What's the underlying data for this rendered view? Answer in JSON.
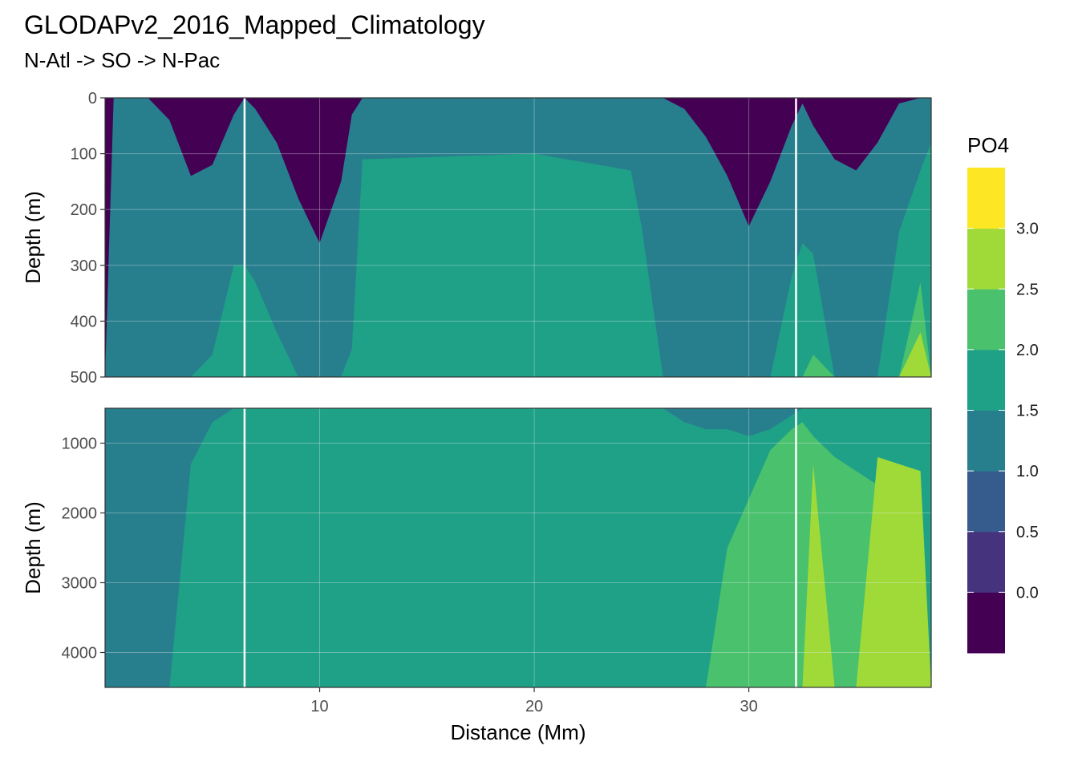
{
  "chart_data": {
    "type": "heatmap",
    "title": "GLODAPv2_2016_Mapped_Climatology",
    "subtitle": "N-Atl -> SO -> N-Pac",
    "xlabel": "Distance (Mm)",
    "ylabel": "Depth (m)",
    "xlim": [
      0,
      38.5
    ],
    "x_ticks": [
      10,
      20,
      30
    ],
    "section_breaks_x": [
      6.5,
      32.2
    ],
    "panels": [
      {
        "name": "upper",
        "ylim": [
          0,
          500
        ],
        "y_ticks": [
          0,
          100,
          200,
          300,
          400,
          500
        ],
        "bands": [
          {
            "level": 0,
            "x": [
              0,
              0.4,
              1.0,
              2.0,
              3.0,
              4.0,
              5.0,
              6.0,
              6.5,
              7.0,
              8.0,
              9.0,
              10.0,
              11.0,
              11.5,
              12.0,
              20.0,
              24.5,
              25.0,
              26.0,
              27.0,
              28.0,
              29.0,
              30.0,
              31.0,
              32.0,
              32.5,
              33.0,
              34.0,
              35.0,
              36.0,
              37.0,
              38.0,
              38.5
            ],
            "top": [
              0,
              0,
              0,
              0,
              0,
              0,
              0,
              0,
              0,
              0,
              0,
              0,
              0,
              0,
              0,
              0,
              0,
              0,
              0,
              0,
              0,
              0,
              0,
              0,
              0,
              0,
              0,
              0,
              0,
              0,
              0,
              0,
              0,
              0
            ]
          },
          {
            "level": 1,
            "x": [
              0,
              0.4,
              1.0,
              2.0,
              3.0,
              4.0,
              5.0,
              6.0,
              6.5,
              7.0,
              8.0,
              9.0,
              10.0,
              11.0,
              11.5,
              12.0,
              20.0,
              24.5,
              25.0,
              26.0,
              27.0,
              28.0,
              29.0,
              30.0,
              31.0,
              32.0,
              32.5,
              33.0,
              34.0,
              35.0,
              36.0,
              37.0,
              38.0,
              38.5
            ],
            "top": [
              500,
              500,
              480,
              420,
              360,
              370,
              420,
              480,
              480,
              500,
              500,
              500,
              500,
              500,
              500,
              500,
              500,
              500,
              500,
              500,
              500,
              500,
              500,
              500,
              480,
              470,
              500,
              500,
              500,
              500,
              500,
              500,
              500,
              500
            ]
          },
          {
            "level": 2,
            "x": [
              0,
              0.4,
              1.0,
              2.0,
              3.0,
              4.0,
              5.0,
              6.0,
              6.5,
              7.0,
              8.0,
              9.0,
              10.0,
              11.0,
              11.5,
              12.0,
              20.0,
              24.5,
              25.0,
              26.0,
              27.0,
              28.0,
              29.0,
              30.0,
              31.0,
              32.0,
              32.5,
              33.0,
              34.0,
              35.0,
              36.0,
              37.0,
              38.0,
              38.5
            ],
            "top": [
              500,
              80,
              40,
              80,
              140,
              220,
              200,
              80,
              40,
              60,
              160,
              280,
              370,
              200,
              60,
              0,
              0,
              0,
              0,
              0,
              80,
              160,
              240,
              320,
              220,
              100,
              60,
              120,
              200,
              230,
              150,
              40,
              20,
              40
            ]
          },
          {
            "level": 3,
            "x": [
              0,
              0.4,
              1.0,
              2.0,
              3.0,
              4.0,
              5.0,
              6.0,
              6.5,
              7.0,
              8.0,
              9.0,
              10.0,
              11.0,
              11.5,
              12.0,
              20.0,
              24.5,
              25.0,
              26.0,
              27.0,
              28.0,
              29.0,
              30.0,
              31.0,
              32.0,
              32.5,
              33.0,
              34.0,
              35.0,
              36.0,
              37.0,
              38.0,
              38.5
            ],
            "top": [
              500,
              0,
              0,
              0,
              40,
              140,
              120,
              30,
              0,
              20,
              80,
              180,
              260,
              150,
              30,
              0,
              0,
              0,
              0,
              0,
              20,
              70,
              140,
              230,
              150,
              50,
              10,
              50,
              110,
              130,
              80,
              10,
              0,
              0
            ]
          },
          {
            "level": 4,
            "x": [
              0,
              0.4,
              1.0,
              2.0,
              3.0,
              4.0,
              5.0,
              6.0,
              6.5,
              7.0,
              8.0,
              9.0,
              10.0,
              11.0,
              11.5,
              12.0,
              20.0,
              24.5,
              25.0,
              26.0,
              27.0,
              28.0,
              29.0,
              30.0,
              31.0,
              32.0,
              32.5,
              33.0,
              34.0,
              35.0,
              36.0,
              37.0,
              38.0,
              38.5
            ],
            "top": [
              500,
              500,
              500,
              500,
              500,
              500,
              460,
              300,
              300,
              330,
              420,
              500,
              500,
              500,
              450,
              110,
              100,
              130,
              230,
              500,
              500,
              500,
              500,
              500,
              500,
              320,
              260,
              280,
              500,
              500,
              500,
              240,
              130,
              80
            ]
          },
          {
            "level": 5,
            "x": [
              0,
              0.4,
              1.0,
              2.0,
              3.0,
              4.0,
              5.0,
              6.0,
              6.5,
              7.0,
              8.0,
              9.0,
              10.0,
              11.0,
              11.5,
              12.0,
              20.0,
              24.5,
              25.0,
              26.0,
              27.0,
              28.0,
              29.0,
              30.0,
              31.0,
              32.0,
              32.5,
              33.0,
              34.0,
              35.0,
              36.0,
              37.0,
              38.0,
              38.5
            ],
            "top": [
              500,
              500,
              500,
              500,
              500,
              500,
              500,
              500,
              500,
              500,
              500,
              500,
              500,
              500,
              500,
              500,
              500,
              500,
              500,
              500,
              500,
              500,
              500,
              500,
              500,
              500,
              500,
              460,
              500,
              500,
              500,
              500,
              330,
              500
            ]
          },
          {
            "level": 6,
            "x": [
              0,
              0.4,
              1.0,
              2.0,
              3.0,
              4.0,
              5.0,
              6.0,
              6.5,
              7.0,
              8.0,
              9.0,
              10.0,
              11.0,
              11.5,
              12.0,
              20.0,
              24.5,
              25.0,
              26.0,
              27.0,
              28.0,
              29.0,
              30.0,
              31.0,
              32.0,
              32.5,
              33.0,
              34.0,
              35.0,
              36.0,
              37.0,
              38.0,
              38.5
            ],
            "top": [
              500,
              500,
              500,
              500,
              500,
              500,
              500,
              500,
              500,
              500,
              500,
              500,
              500,
              500,
              500,
              500,
              500,
              500,
              500,
              500,
              500,
              500,
              500,
              500,
              500,
              500,
              500,
              500,
              500,
              500,
              500,
              500,
              420,
              500
            ]
          }
        ]
      },
      {
        "name": "lower",
        "ylim": [
          500,
          4500
        ],
        "y_ticks": [
          1000,
          2000,
          3000,
          4000
        ],
        "bands": [
          {
            "level": 3,
            "x": [
              0,
              0.4,
              1.0,
              2.0,
              3.0,
              4.0,
              5.0,
              6.0,
              6.5,
              7.0,
              8.0,
              9.0,
              10.0,
              11.0,
              11.5,
              12.0,
              20.0,
              24.5,
              25.0,
              26.0,
              27.0,
              28.0,
              29.0,
              30.0,
              31.0,
              32.0,
              32.5,
              33.0,
              34.0,
              35.0,
              36.0,
              37.0,
              38.0,
              38.5
            ],
            "top": [
              500,
              500,
              500,
              500,
              500,
              500,
              500,
              500,
              500,
              500,
              500,
              500,
              500,
              500,
              500,
              500,
              500,
              500,
              500,
              500,
              500,
              500,
              500,
              500,
              500,
              500,
              500,
              500,
              500,
              500,
              500,
              500,
              500,
              500
            ]
          },
          {
            "level": 4,
            "x": [
              0,
              0.4,
              1.0,
              2.0,
              3.0,
              4.0,
              5.0,
              6.0,
              6.5,
              7.0,
              8.0,
              9.0,
              10.0,
              11.0,
              11.5,
              12.0,
              20.0,
              24.5,
              25.0,
              26.0,
              27.0,
              28.0,
              29.0,
              30.0,
              31.0,
              32.0,
              32.5,
              33.0,
              34.0,
              35.0,
              36.0,
              37.0,
              38.0,
              38.5
            ],
            "top": [
              4500,
              4500,
              4500,
              4500,
              4500,
              1300,
              700,
              500,
              500,
              500,
              500,
              500,
              500,
              500,
              500,
              500,
              500,
              500,
              500,
              500,
              700,
              800,
              800,
              900,
              800,
              600,
              500,
              500,
              500,
              500,
              500,
              500,
              500,
              500
            ]
          },
          {
            "level": 5,
            "x": [
              0,
              0.4,
              1.0,
              2.0,
              3.0,
              4.0,
              5.0,
              6.0,
              6.5,
              7.0,
              8.0,
              9.0,
              10.0,
              11.0,
              11.5,
              12.0,
              20.0,
              24.5,
              25.0,
              26.0,
              27.0,
              28.0,
              29.0,
              30.0,
              31.0,
              32.0,
              32.5,
              33.0,
              34.0,
              35.0,
              36.0,
              37.0,
              38.0,
              38.5
            ],
            "top": [
              4500,
              4500,
              4500,
              4500,
              4500,
              4500,
              4500,
              4500,
              4500,
              4500,
              4500,
              4500,
              4500,
              4500,
              4500,
              4500,
              4500,
              4500,
              4500,
              4500,
              4500,
              4500,
              2500,
              1800,
              1100,
              800,
              700,
              900,
              1200,
              1400,
              1600,
              1700,
              1800,
              4500
            ]
          },
          {
            "level": 6,
            "x": [
              0,
              0.4,
              1.0,
              2.0,
              3.0,
              4.0,
              5.0,
              6.0,
              6.5,
              7.0,
              8.0,
              9.0,
              10.0,
              11.0,
              11.5,
              12.0,
              20.0,
              24.5,
              25.0,
              26.0,
              27.0,
              28.0,
              29.0,
              30.0,
              31.0,
              32.0,
              32.5,
              33.0,
              34.0,
              35.0,
              36.0,
              37.0,
              38.0,
              38.5
            ],
            "top": [
              4500,
              4500,
              4500,
              4500,
              4500,
              4500,
              4500,
              4500,
              4500,
              4500,
              4500,
              4500,
              4500,
              4500,
              4500,
              4500,
              4500,
              4500,
              4500,
              4500,
              4500,
              4500,
              4500,
              4500,
              4500,
              4500,
              4500,
              1300,
              4500,
              4500,
              1200,
              1300,
              1400,
              4500
            ]
          }
        ]
      }
    ],
    "legend": {
      "title": "PO4",
      "breaks": [
        "0.0",
        "0.5",
        "1.0",
        "1.5",
        "2.0",
        "2.5",
        "3.0"
      ],
      "colors": [
        "#440154",
        "#46337e",
        "#365c8d",
        "#277f8e",
        "#1fa187",
        "#4ac16d",
        "#a0da39",
        "#fde725"
      ]
    }
  }
}
